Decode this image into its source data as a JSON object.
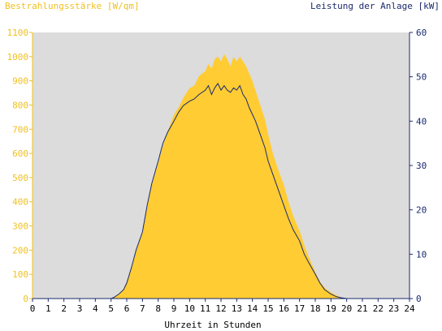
{
  "chart_data": {
    "type": "area",
    "title_left": "Bestrahlungsstärke [W/qm]",
    "title_right": "Leistung der Anlage [kW]",
    "xlabel": "Uhrzeit in Stunden",
    "x_ticks": [
      "0",
      "1",
      "2",
      "3",
      "4",
      "5",
      "6",
      "7",
      "8",
      "9",
      "10",
      "11",
      "12",
      "13",
      "14",
      "15",
      "16",
      "17",
      "18",
      "19",
      "20",
      "21",
      "22",
      "23",
      "24"
    ],
    "xlim": [
      0,
      24
    ],
    "y_left_ticks": [
      "0",
      "100",
      "200",
      "300",
      "400",
      "500",
      "600",
      "700",
      "800",
      "900",
      "1000",
      "1100"
    ],
    "ylim_left": [
      0,
      1100
    ],
    "y_right_ticks": [
      "0",
      "10",
      "20",
      "30",
      "40",
      "50",
      "60"
    ],
    "ylim_right": [
      0,
      60
    ],
    "grid": false,
    "colors": {
      "plot_background": "#dcdcdc",
      "irradiance_fill": "#ffcc33",
      "power_line": "#1a2a6e",
      "left_axis": "#f0c020",
      "right_axis": "#1a2a6e"
    },
    "series": [
      {
        "axis": "left",
        "style": "area",
        "x": [
          0,
          5,
          5.2,
          5.5,
          5.8,
          6.0,
          6.3,
          6.6,
          7.0,
          7.3,
          7.6,
          8.0,
          8.3,
          8.6,
          9.0,
          9.3,
          9.6,
          10.0,
          10.3,
          10.6,
          11.0,
          11.2,
          11.4,
          11.6,
          11.8,
          12.0,
          12.2,
          12.4,
          12.6,
          12.8,
          13.0,
          13.2,
          13.4,
          13.6,
          13.8,
          14.0,
          14.2,
          14.5,
          14.8,
          15.0,
          15.3,
          15.6,
          16.0,
          16.3,
          16.6,
          17.0,
          17.3,
          17.6,
          18.0,
          18.3,
          18.6,
          19.0,
          19.3,
          19.6,
          20.0,
          24
        ],
        "y": [
          0,
          0,
          5,
          20,
          40,
          70,
          130,
          200,
          280,
          380,
          470,
          560,
          630,
          690,
          760,
          790,
          830,
          870,
          880,
          920,
          940,
          970,
          950,
          990,
          1000,
          980,
          1010,
          990,
          960,
          1000,
          980,
          1000,
          980,
          960,
          930,
          900,
          860,
          800,
          740,
          680,
          600,
          540,
          470,
          400,
          340,
          280,
          220,
          170,
          110,
          70,
          45,
          25,
          15,
          5,
          0,
          0
        ]
      },
      {
        "axis": "right",
        "style": "line",
        "x": [
          0,
          5,
          5.2,
          5.5,
          5.8,
          6.0,
          6.3,
          6.6,
          7.0,
          7.3,
          7.6,
          8.0,
          8.3,
          8.6,
          9.0,
          9.3,
          9.6,
          10.0,
          10.3,
          10.6,
          11.0,
          11.2,
          11.4,
          11.6,
          11.8,
          12.0,
          12.2,
          12.4,
          12.6,
          12.8,
          13.0,
          13.2,
          13.4,
          13.6,
          13.8,
          14.0,
          14.2,
          14.5,
          14.8,
          15.0,
          15.3,
          15.6,
          16.0,
          16.3,
          16.6,
          17.0,
          17.3,
          17.6,
          18.0,
          18.3,
          18.6,
          19.0,
          19.3,
          19.6,
          20.0,
          24
        ],
        "y": [
          0,
          0,
          0.3,
          1,
          2,
          3.5,
          7,
          11,
          15,
          21,
          26,
          31,
          35,
          37.5,
          40,
          42,
          43.5,
          44.5,
          45,
          46,
          47,
          48,
          46,
          47.5,
          48.5,
          47,
          48,
          47,
          46.5,
          47.5,
          47,
          48,
          46,
          45,
          43,
          41.5,
          40,
          37,
          34,
          31,
          28,
          25,
          21,
          18,
          15.5,
          13,
          10,
          8,
          5.5,
          3.5,
          2,
          1,
          0.5,
          0.2,
          0,
          0
        ]
      }
    ]
  }
}
